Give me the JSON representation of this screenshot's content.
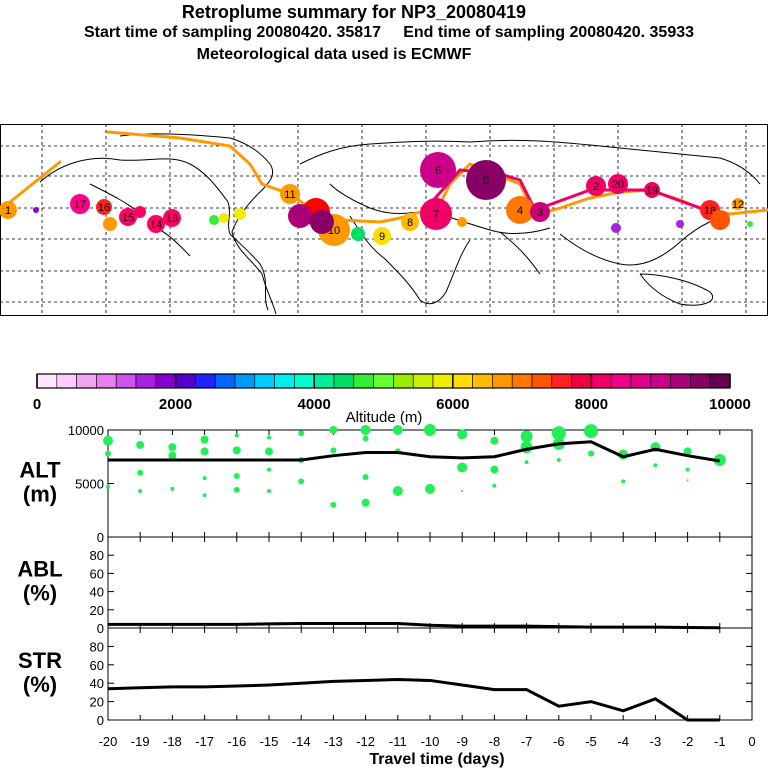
{
  "titles": {
    "line1": "Retroplume summary for NP3_20080419",
    "line2": "Start time of sampling 20080420. 35817     End time of sampling 20080420. 35933",
    "line3": "Meteorological data used is ECMWF"
  },
  "colorbar": {
    "label": "Altitude  (m)",
    "ticks": [
      "0",
      "2000",
      "4000",
      "6000",
      "8000",
      "10000"
    ],
    "colors": [
      "#ffe6ff",
      "#ffccff",
      "#f2a6f2",
      "#e680f0",
      "#cc55ee",
      "#aa22dd",
      "#8800cc",
      "#5500cc",
      "#2222ff",
      "#0066ff",
      "#0099ff",
      "#00ccff",
      "#00eeee",
      "#00ffcc",
      "#00ee99",
      "#00dd66",
      "#33ee33",
      "#66ff33",
      "#99ee00",
      "#ccee00",
      "#eeee00",
      "#ffdd00",
      "#ffbb00",
      "#ff9900",
      "#ff7700",
      "#ff5500",
      "#ff2222",
      "#ee0044",
      "#ee0066",
      "#ee0088",
      "#dd0088",
      "#cc0088",
      "#aa0077",
      "#880066",
      "#660055"
    ]
  },
  "map_labels": [
    "1",
    "17",
    "16",
    "15",
    "14",
    "13",
    "11",
    "10",
    "9",
    "8",
    "7",
    "6",
    "5",
    "4",
    "3",
    "2",
    "20",
    "19",
    "18",
    "12"
  ],
  "chart_data": [
    {
      "type": "line",
      "panel": "ALT",
      "ylabel": "ALT\n(m)",
      "ylabel_lines": [
        "ALT",
        "(m)"
      ],
      "ylim": [
        0,
        10000
      ],
      "yticks": [
        "0",
        "5000",
        "10000"
      ],
      "xlim": [
        -20,
        0
      ],
      "x": [
        -20,
        -19,
        -18,
        -17,
        -16,
        -15,
        -14,
        -13,
        -12,
        -11,
        -10,
        -9,
        -8,
        -7,
        -6,
        -5,
        -4,
        -3,
        -2,
        -1
      ],
      "values": [
        7200,
        7200,
        7200,
        7200,
        7200,
        7200,
        7200,
        7600,
        7900,
        7900,
        7500,
        7400,
        7500,
        8200,
        8700,
        8900,
        7500,
        8200,
        7600,
        7100
      ],
      "scatter_color": "#22ee55",
      "scatter_points": [
        {
          "x": -20,
          "y": 9000,
          "s": 5
        },
        {
          "x": -20,
          "y": 7800,
          "s": 3
        },
        {
          "x": -20,
          "y": 4700,
          "s": 2
        },
        {
          "x": -19,
          "y": 8600,
          "s": 4
        },
        {
          "x": -19,
          "y": 6000,
          "s": 3
        },
        {
          "x": -19,
          "y": 4300,
          "s": 2
        },
        {
          "x": -18,
          "y": 8400,
          "s": 4
        },
        {
          "x": -18,
          "y": 7600,
          "s": 4
        },
        {
          "x": -18,
          "y": 4500,
          "s": 2
        },
        {
          "x": -17,
          "y": 9100,
          "s": 4
        },
        {
          "x": -17,
          "y": 8000,
          "s": 4
        },
        {
          "x": -17,
          "y": 5500,
          "s": 2
        },
        {
          "x": -17,
          "y": 3900,
          "s": 2
        },
        {
          "x": -16,
          "y": 9500,
          "s": 2
        },
        {
          "x": -16,
          "y": 8100,
          "s": 4
        },
        {
          "x": -16,
          "y": 5700,
          "s": 3
        },
        {
          "x": -16,
          "y": 4400,
          "s": 3
        },
        {
          "x": -15,
          "y": 9300,
          "s": 2
        },
        {
          "x": -15,
          "y": 8000,
          "s": 4
        },
        {
          "x": -15,
          "y": 6300,
          "s": 2
        },
        {
          "x": -15,
          "y": 4300,
          "s": 2
        },
        {
          "x": -14,
          "y": 9700,
          "s": 3
        },
        {
          "x": -14,
          "y": 7200,
          "s": 3
        },
        {
          "x": -14,
          "y": 5200,
          "s": 3
        },
        {
          "x": -13,
          "y": 10000,
          "s": 4
        },
        {
          "x": -13,
          "y": 8100,
          "s": 3
        },
        {
          "x": -13,
          "y": 3000,
          "s": 3
        },
        {
          "x": -12,
          "y": 10000,
          "s": 5
        },
        {
          "x": -12,
          "y": 9200,
          "s": 3
        },
        {
          "x": -12,
          "y": 5600,
          "s": 3
        },
        {
          "x": -12,
          "y": 3200,
          "s": 4
        },
        {
          "x": -11,
          "y": 10000,
          "s": 5
        },
        {
          "x": -11,
          "y": 8000,
          "s": 3
        },
        {
          "x": -11,
          "y": 4300,
          "s": 5
        },
        {
          "x": -10,
          "y": 10000,
          "s": 6
        },
        {
          "x": -10,
          "y": 4500,
          "s": 5
        },
        {
          "x": -9,
          "y": 9600,
          "s": 5
        },
        {
          "x": -9,
          "y": 6500,
          "s": 5
        },
        {
          "x": -9,
          "y": 4300,
          "s": 1
        },
        {
          "x": -8,
          "y": 9000,
          "s": 4
        },
        {
          "x": -8,
          "y": 6300,
          "s": 4
        },
        {
          "x": -8,
          "y": 4800,
          "s": 2
        },
        {
          "x": -7,
          "y": 9400,
          "s": 6
        },
        {
          "x": -7,
          "y": 8400,
          "s": 6
        },
        {
          "x": -7,
          "y": 7000,
          "s": 2
        },
        {
          "x": -6,
          "y": 9700,
          "s": 7
        },
        {
          "x": -6,
          "y": 8700,
          "s": 6
        },
        {
          "x": -6,
          "y": 7200,
          "s": 2
        },
        {
          "x": -5,
          "y": 9900,
          "s": 7
        },
        {
          "x": -5,
          "y": 7800,
          "s": 3
        },
        {
          "x": -4,
          "y": 7700,
          "s": 5
        },
        {
          "x": -4,
          "y": 5200,
          "s": 2
        },
        {
          "x": -3,
          "y": 8400,
          "s": 5
        },
        {
          "x": -3,
          "y": 6700,
          "s": 2
        },
        {
          "x": -2,
          "y": 8000,
          "s": 4
        },
        {
          "x": -2,
          "y": 6300,
          "s": 2
        },
        {
          "x": -2,
          "y": 5300,
          "s": 1
        },
        {
          "x": -1,
          "y": 7200,
          "s": 6
        }
      ]
    },
    {
      "type": "line",
      "panel": "ABL",
      "ylabel": "ABL\n(%)",
      "ylabel_lines": [
        "ABL",
        "(%)"
      ],
      "ylim": [
        0,
        100
      ],
      "yticks": [
        "0",
        "20",
        "40",
        "60",
        "80"
      ],
      "xlim": [
        -20,
        0
      ],
      "x": [
        -20,
        -19,
        -18,
        -17,
        -16,
        -15,
        -14,
        -13,
        -12,
        -11,
        -10,
        -9,
        -8,
        -7,
        -6,
        -5,
        -4,
        -3,
        -2,
        -1
      ],
      "values": [
        4,
        4,
        4,
        4,
        4,
        4.5,
        5,
        5,
        5,
        5,
        3,
        2,
        2,
        2,
        1.5,
        1,
        1,
        1,
        0.5,
        0.3
      ]
    },
    {
      "type": "line",
      "panel": "STR",
      "ylabel": "STR\n(%)",
      "ylabel_lines": [
        "STR",
        "(%)"
      ],
      "ylim": [
        0,
        100
      ],
      "yticks": [
        "0",
        "20",
        "40",
        "60",
        "80"
      ],
      "xlim": [
        -20,
        0
      ],
      "xlabel": "Travel time (days)",
      "xticks": [
        "-20",
        "-19",
        "-18",
        "-17",
        "-16",
        "-15",
        "-14",
        "-13",
        "-12",
        "-11",
        "-10",
        "-9",
        "-8",
        "-7",
        "-6",
        "-5",
        "-4",
        "-3",
        "-2",
        "-1",
        "0"
      ],
      "x": [
        -20,
        -19,
        -18,
        -17,
        -16,
        -15,
        -14,
        -13,
        -12,
        -11,
        -10,
        -9,
        -8,
        -7,
        -6,
        -5,
        -4,
        -3,
        -2,
        -1
      ],
      "values": [
        34,
        35,
        36,
        36,
        37,
        38,
        40,
        42,
        43,
        44,
        43,
        38,
        33,
        33,
        15,
        20,
        10,
        23,
        0,
        0
      ]
    }
  ]
}
